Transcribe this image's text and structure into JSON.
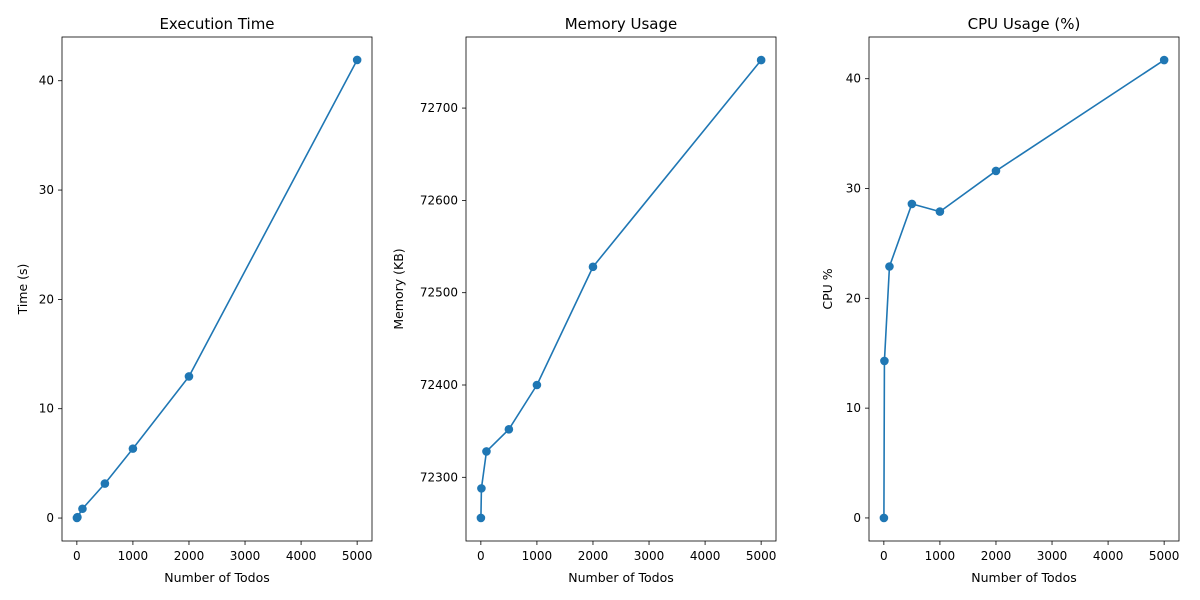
{
  "chart_data": [
    {
      "type": "line",
      "title": "Execution Time",
      "xlabel": "Number of Todos",
      "ylabel": "Time (s)",
      "x": [
        1,
        10,
        100,
        500,
        1000,
        2000,
        5000
      ],
      "series": [
        {
          "values": [
            0.01,
            0.08,
            0.85,
            3.15,
            6.35,
            12.95,
            41.9
          ]
        }
      ],
      "xlim": [
        -265,
        5265
      ],
      "ylim": [
        -2.1,
        44.0
      ],
      "xticks": [
        0,
        1000,
        2000,
        3000,
        4000,
        5000
      ],
      "yticks": [
        0,
        10,
        20,
        30,
        40
      ],
      "xtick_labels": [
        "0",
        "1000",
        "2000",
        "3000",
        "4000",
        "5000"
      ],
      "ytick_labels": [
        "0",
        "10",
        "20",
        "30",
        "40"
      ],
      "color": "#1f77b4",
      "marker": "circle",
      "grid": false
    },
    {
      "type": "line",
      "title": "Memory Usage",
      "xlabel": "Number of Todos",
      "ylabel": "Memory (KB)",
      "x": [
        1,
        10,
        100,
        500,
        1000,
        2000,
        5000
      ],
      "series": [
        {
          "values": [
            72256,
            72288,
            72328,
            72352,
            72400,
            72528,
            72752
          ]
        }
      ],
      "xlim": [
        -265,
        5265
      ],
      "ylim": [
        72231,
        72777
      ],
      "xticks": [
        0,
        1000,
        2000,
        3000,
        4000,
        5000
      ],
      "yticks": [
        72300,
        72400,
        72500,
        72600,
        72700
      ],
      "xtick_labels": [
        "0",
        "1000",
        "2000",
        "3000",
        "4000",
        "5000"
      ],
      "ytick_labels": [
        "72300",
        "72400",
        "72500",
        "72600",
        "72700"
      ],
      "color": "#1f77b4",
      "marker": "circle",
      "grid": false
    },
    {
      "type": "line",
      "title": "CPU Usage (%)",
      "xlabel": "Number of Todos",
      "ylabel": "CPU %",
      "x": [
        1,
        10,
        100,
        500,
        1000,
        2000,
        5000
      ],
      "series": [
        {
          "values": [
            0.0,
            14.3,
            22.9,
            28.6,
            27.9,
            31.6,
            41.7
          ]
        }
      ],
      "xlim": [
        -265,
        5265
      ],
      "ylim": [
        -2.1,
        43.8
      ],
      "xticks": [
        0,
        1000,
        2000,
        3000,
        4000,
        5000
      ],
      "yticks": [
        0,
        10,
        20,
        30,
        40
      ],
      "xtick_labels": [
        "0",
        "1000",
        "2000",
        "3000",
        "4000",
        "5000"
      ],
      "ytick_labels": [
        "0",
        "10",
        "20",
        "30",
        "40"
      ],
      "color": "#1f77b4",
      "marker": "circle",
      "grid": false
    }
  ]
}
